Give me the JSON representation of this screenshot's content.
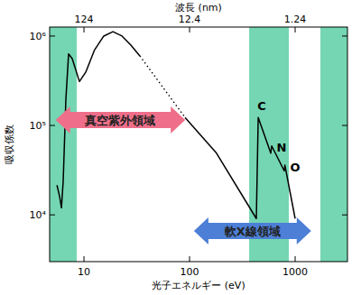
{
  "chart_data": {
    "type": "line",
    "xlabel": "光子エネルギー (eV)",
    "ylabel": "吸収係数",
    "x2label": "波長 (nm)",
    "log": true,
    "grid": false,
    "xlim": [
      4.73,
      3130
    ],
    "ylim": [
      3000,
      1260000
    ],
    "xticks": [
      10,
      100,
      1000
    ],
    "x2ticks": [
      {
        "value": 10,
        "label": "124"
      },
      {
        "value": 100,
        "label": "12.4"
      },
      {
        "value": 1000,
        "label": "1.24"
      }
    ],
    "yticks": [
      {
        "value": 10000,
        "label": "10⁴"
      },
      {
        "value": 100000,
        "label": "10⁵"
      },
      {
        "value": 1000000,
        "label": "10⁶"
      }
    ],
    "series": [
      {
        "color": "#000000",
        "line_style": "solid",
        "x": [
          5.55,
          5.88,
          6.12,
          6.36,
          6.74,
          7.15,
          7.74,
          9.06,
          10.4,
          12.6,
          15.4,
          18.8,
          22.9,
          27.8,
          33.8
        ],
        "values": [
          21500,
          16000,
          12000,
          24000,
          196000,
          630000,
          560000,
          310000,
          395000,
          700000,
          1000000,
          1120000,
          1000000,
          790000,
          600000
        ]
      },
      {
        "color": "#000000",
        "line_style": "dotted",
        "x": [
          33.8,
          90.6
        ],
        "values": [
          600000,
          123000
        ]
      },
      {
        "color": "#000000",
        "line_style": "solid",
        "x": [
          90.6,
          180,
          429,
          447,
          588,
          600,
          789,
          800,
          1000
        ],
        "values": [
          123000,
          49000,
          9100,
          123000,
          49000,
          59000,
          31000,
          36000,
          9100
        ]
      }
    ],
    "bands": [
      {
        "x": [
          4.73,
          8.55
        ],
        "color": "#74d6b2"
      },
      {
        "x": [
          367,
          871
        ],
        "color": "#74d6b2"
      },
      {
        "x": [
          1735,
          3130
        ],
        "color": "#74d6b2"
      }
    ],
    "annotations": [
      {
        "type": "arrow",
        "text": "真空紫外領域",
        "x": [
          5.4,
          91
        ],
        "y": 115000,
        "color": "#ef6f8a"
      },
      {
        "type": "arrow",
        "text": "軟X線領域",
        "x": [
          110,
          1420
        ],
        "y": 6600,
        "color": "#4d7fd6"
      },
      {
        "type": "text",
        "text": "C",
        "x": 483,
        "y": 149000
      },
      {
        "type": "text",
        "text": "N",
        "x": 745,
        "y": 51000
      },
      {
        "type": "text",
        "text": "O",
        "x": 1000,
        "y": 30600
      }
    ]
  }
}
